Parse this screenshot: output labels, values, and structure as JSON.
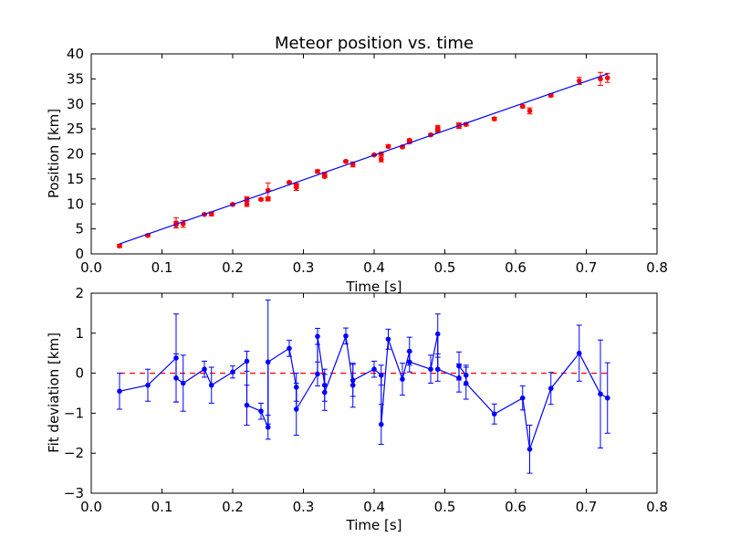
{
  "figure_bg": "#ffffff",
  "chart_data": [
    {
      "type": "scatter",
      "title": "Meteor position vs. time",
      "xlabel": "Time [s]",
      "ylabel": "Position [km]",
      "xlim": [
        0.0,
        0.8
      ],
      "ylim": [
        0,
        40
      ],
      "xticks": [
        "0.0",
        "0.1",
        "0.2",
        "0.3",
        "0.4",
        "0.5",
        "0.6",
        "0.7",
        "0.8"
      ],
      "yticks": [
        "0",
        "5",
        "10",
        "15",
        "20",
        "25",
        "30",
        "35",
        "40"
      ],
      "grid": false,
      "series": [
        {
          "kind": "points-with-errorbars",
          "color": "#ff0000",
          "points": [
            {
              "x": 0.04,
              "y": 1.6,
              "err": 0.3
            },
            {
              "x": 0.08,
              "y": 3.7,
              "err": 0.2
            },
            {
              "x": 0.12,
              "y": 6.2,
              "err": 1.0
            },
            {
              "x": 0.12,
              "y": 5.8,
              "err": 0.6
            },
            {
              "x": 0.13,
              "y": 6.0,
              "err": 0.7
            },
            {
              "x": 0.16,
              "y": 7.9,
              "err": 0.2
            },
            {
              "x": 0.17,
              "y": 8.0,
              "err": 0.4
            },
            {
              "x": 0.2,
              "y": 9.9,
              "err": 0.2
            },
            {
              "x": 0.22,
              "y": 11.0,
              "err": 0.4
            },
            {
              "x": 0.22,
              "y": 10.0,
              "err": 0.5
            },
            {
              "x": 0.24,
              "y": 10.9,
              "err": 0.2
            },
            {
              "x": 0.25,
              "y": 11.0,
              "err": 0.4
            },
            {
              "x": 0.25,
              "y": 12.7,
              "err": 1.5
            },
            {
              "x": 0.28,
              "y": 14.3,
              "err": 0.2
            },
            {
              "x": 0.29,
              "y": 13.7,
              "err": 0.4
            },
            {
              "x": 0.29,
              "y": 13.3,
              "err": 0.6
            },
            {
              "x": 0.32,
              "y": 16.5,
              "err": 0.3
            },
            {
              "x": 0.33,
              "y": 15.9,
              "err": 0.4
            },
            {
              "x": 0.33,
              "y": 15.5,
              "err": 0.3
            },
            {
              "x": 0.36,
              "y": 18.5,
              "err": 0.2
            },
            {
              "x": 0.37,
              "y": 17.9,
              "err": 0.5
            },
            {
              "x": 0.4,
              "y": 19.8,
              "err": 0.2
            },
            {
              "x": 0.41,
              "y": 20.0,
              "err": 0.3
            },
            {
              "x": 0.41,
              "y": 18.9,
              "err": 0.5
            },
            {
              "x": 0.42,
              "y": 21.5,
              "err": 0.3
            },
            {
              "x": 0.44,
              "y": 21.4,
              "err": 0.2
            },
            {
              "x": 0.45,
              "y": 22.7,
              "err": 0.3
            },
            {
              "x": 0.45,
              "y": 22.4,
              "err": 0.3
            },
            {
              "x": 0.48,
              "y": 23.8,
              "err": 0.2
            },
            {
              "x": 0.49,
              "y": 25.2,
              "err": 0.5
            },
            {
              "x": 0.49,
              "y": 24.6,
              "err": 0.3
            },
            {
              "x": 0.52,
              "y": 25.8,
              "err": 0.4
            },
            {
              "x": 0.52,
              "y": 25.5,
              "err": 0.4
            },
            {
              "x": 0.53,
              "y": 25.9,
              "err": 0.3
            },
            {
              "x": 0.57,
              "y": 27.0,
              "err": 0.3
            },
            {
              "x": 0.61,
              "y": 29.5,
              "err": 0.3
            },
            {
              "x": 0.62,
              "y": 28.6,
              "err": 0.6
            },
            {
              "x": 0.65,
              "y": 31.7,
              "err": 0.3
            },
            {
              "x": 0.69,
              "y": 34.6,
              "err": 0.7
            },
            {
              "x": 0.72,
              "y": 35.0,
              "err": 1.3
            },
            {
              "x": 0.73,
              "y": 35.2,
              "err": 0.9
            }
          ]
        },
        {
          "kind": "fit-line",
          "color": "#0000ff",
          "x": [
            0.04,
            0.73
          ],
          "y": [
            2.0,
            36.0
          ]
        }
      ]
    },
    {
      "type": "line",
      "title": "",
      "xlabel": "Time [s]",
      "ylabel": "Fit deviation [km]",
      "xlim": [
        0.0,
        0.8
      ],
      "ylim": [
        -3,
        2
      ],
      "xticks": [
        "0.0",
        "0.1",
        "0.2",
        "0.3",
        "0.4",
        "0.5",
        "0.6",
        "0.7",
        "0.8"
      ],
      "yticks": [
        "−3",
        "−2",
        "−1",
        "0",
        "1",
        "2"
      ],
      "grid": false,
      "reference_line": {
        "y": 0,
        "x": [
          0.04,
          0.73
        ],
        "color": "#ff0000",
        "style": "dashed"
      },
      "series": [
        {
          "kind": "line-with-errorbars",
          "color": "#0000ff",
          "points": [
            {
              "x": 0.04,
              "y": -0.45,
              "err": 0.45
            },
            {
              "x": 0.08,
              "y": -0.3,
              "err": 0.4
            },
            {
              "x": 0.12,
              "y": 0.38,
              "err": 1.1
            },
            {
              "x": 0.12,
              "y": -0.12,
              "err": 0.6
            },
            {
              "x": 0.13,
              "y": -0.25,
              "err": 0.7
            },
            {
              "x": 0.16,
              "y": 0.1,
              "err": 0.2
            },
            {
              "x": 0.17,
              "y": -0.3,
              "err": 0.45
            },
            {
              "x": 0.2,
              "y": 0.03,
              "err": 0.15
            },
            {
              "x": 0.22,
              "y": 0.3,
              "err": 0.25
            },
            {
              "x": 0.22,
              "y": -0.8,
              "err": 0.5
            },
            {
              "x": 0.24,
              "y": -0.95,
              "err": 0.2
            },
            {
              "x": 0.25,
              "y": -1.35,
              "err": 0.3
            },
            {
              "x": 0.25,
              "y": 0.28,
              "err": 1.55
            },
            {
              "x": 0.28,
              "y": 0.62,
              "err": 0.2
            },
            {
              "x": 0.29,
              "y": -0.35,
              "err": 0.35
            },
            {
              "x": 0.29,
              "y": -0.9,
              "err": 0.65
            },
            {
              "x": 0.32,
              "y": -0.02,
              "err": 0.3
            },
            {
              "x": 0.32,
              "y": 0.92,
              "err": 0.2
            },
            {
              "x": 0.33,
              "y": -0.3,
              "err": 0.4
            },
            {
              "x": 0.33,
              "y": -0.48,
              "err": 0.45
            },
            {
              "x": 0.36,
              "y": 0.93,
              "err": 0.2
            },
            {
              "x": 0.37,
              "y": -0.3,
              "err": 0.55
            },
            {
              "x": 0.37,
              "y": -0.18,
              "err": 0.4
            },
            {
              "x": 0.4,
              "y": 0.1,
              "err": 0.2
            },
            {
              "x": 0.41,
              "y": -0.05,
              "err": 0.25
            },
            {
              "x": 0.41,
              "y": -1.28,
              "err": 0.5
            },
            {
              "x": 0.42,
              "y": 0.85,
              "err": 0.25
            },
            {
              "x": 0.44,
              "y": -0.15,
              "err": 0.4
            },
            {
              "x": 0.45,
              "y": 0.55,
              "err": 0.35
            },
            {
              "x": 0.45,
              "y": 0.28,
              "err": 0.25
            },
            {
              "x": 0.48,
              "y": 0.1,
              "err": 0.35
            },
            {
              "x": 0.49,
              "y": 0.98,
              "err": 0.5
            },
            {
              "x": 0.49,
              "y": 0.1,
              "err": 0.3
            },
            {
              "x": 0.52,
              "y": -0.12,
              "err": 0.35
            },
            {
              "x": 0.52,
              "y": 0.18,
              "err": 0.35
            },
            {
              "x": 0.53,
              "y": -0.05,
              "err": 0.25
            },
            {
              "x": 0.53,
              "y": -0.25,
              "err": 0.4
            },
            {
              "x": 0.57,
              "y": -1.02,
              "err": 0.25
            },
            {
              "x": 0.61,
              "y": -0.62,
              "err": 0.3
            },
            {
              "x": 0.62,
              "y": -1.9,
              "err": 0.6
            },
            {
              "x": 0.65,
              "y": -0.38,
              "err": 0.4
            },
            {
              "x": 0.69,
              "y": 0.5,
              "err": 0.7
            },
            {
              "x": 0.72,
              "y": -0.52,
              "err": 1.35
            },
            {
              "x": 0.73,
              "y": -0.62,
              "err": 0.88
            }
          ]
        }
      ]
    }
  ]
}
